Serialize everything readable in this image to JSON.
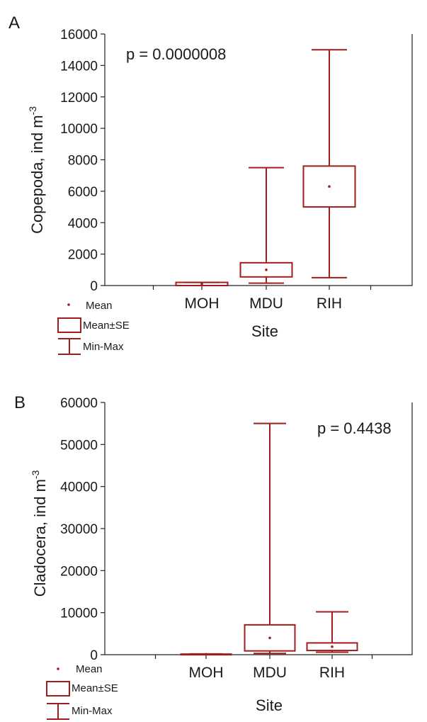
{
  "colors": {
    "box": "#a01e1e",
    "axis": "#222222"
  },
  "legend": {
    "mean": "Mean",
    "mean_se": "Mean±SE",
    "min_max": "Min-Max"
  },
  "chart_data": [
    {
      "panel_label": "A",
      "type": "box",
      "ylabel_main": "Copepoda, ind m",
      "ylabel_sup": "-3",
      "xlabel": "Site",
      "annotation": "p = 0.0000008",
      "ylim": [
        0,
        16000
      ],
      "yticks": [
        0,
        2000,
        4000,
        6000,
        8000,
        10000,
        12000,
        14000,
        16000
      ],
      "categories": [
        "MOH",
        "MDU",
        "RIH"
      ],
      "stats": [
        {
          "min": 0,
          "se_low": 0,
          "mean": 100,
          "se_high": 200,
          "max": 200
        },
        {
          "min": 150,
          "se_low": 550,
          "mean": 1000,
          "se_high": 1450,
          "max": 7500
        },
        {
          "min": 500,
          "se_low": 5000,
          "mean": 6300,
          "se_high": 7600,
          "max": 15000
        }
      ]
    },
    {
      "panel_label": "B",
      "type": "box",
      "ylabel_main": "Cladocera, ind m",
      "ylabel_sup": "-3",
      "xlabel": "Site",
      "annotation": "p = 0.4438",
      "ylim": [
        0,
        60000
      ],
      "yticks": [
        0,
        10000,
        20000,
        30000,
        40000,
        50000,
        60000
      ],
      "categories": [
        "MOH",
        "MDU",
        "RIH"
      ],
      "stats": [
        {
          "min": 0,
          "se_low": 0,
          "mean": 100,
          "se_high": 150,
          "max": 200
        },
        {
          "min": 300,
          "se_low": 900,
          "mean": 4000,
          "se_high": 7100,
          "max": 55000
        },
        {
          "min": 600,
          "se_low": 1000,
          "mean": 1900,
          "se_high": 2800,
          "max": 10200
        }
      ]
    }
  ]
}
